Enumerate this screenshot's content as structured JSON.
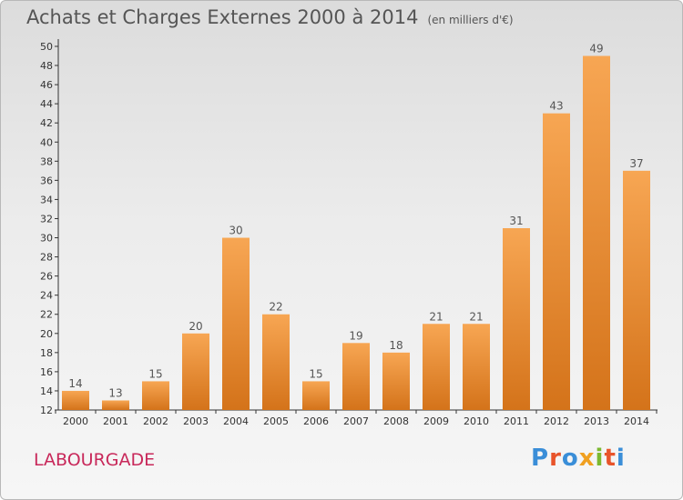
{
  "header": {
    "title": "Achats et Charges Externes 2000 à 2014",
    "unit": "(en milliers d'€)"
  },
  "footer": {
    "commune": "LABOURGADE",
    "logo_text": "Proxiti",
    "logo_colors": [
      "#3a8ed8",
      "#e8542a",
      "#3a8ed8",
      "#f0a020",
      "#7cb82f",
      "#e8542a",
      "#3a8ed8"
    ]
  },
  "colors": {
    "bar_light": "#f7a653",
    "bar_dark": "#d4731a",
    "text": "#555555",
    "axis": "#333333",
    "brand_red": "#c8285a"
  },
  "chart_data": {
    "type": "bar",
    "title": "Achats et Charges Externes 2000 à 2014",
    "categories": [
      "2000",
      "2001",
      "2002",
      "2003",
      "2004",
      "2005",
      "2006",
      "2007",
      "2008",
      "2009",
      "2010",
      "2011",
      "2012",
      "2013",
      "2014"
    ],
    "values": [
      14,
      13,
      15,
      20,
      30,
      22,
      15,
      19,
      18,
      21,
      21,
      31,
      43,
      49,
      37
    ],
    "ylim": [
      12,
      50
    ],
    "yticks": [
      12,
      14,
      16,
      18,
      20,
      22,
      24,
      26,
      28,
      30,
      32,
      34,
      36,
      38,
      40,
      42,
      44,
      46,
      48,
      50
    ],
    "grid": false,
    "data_labels": true
  }
}
